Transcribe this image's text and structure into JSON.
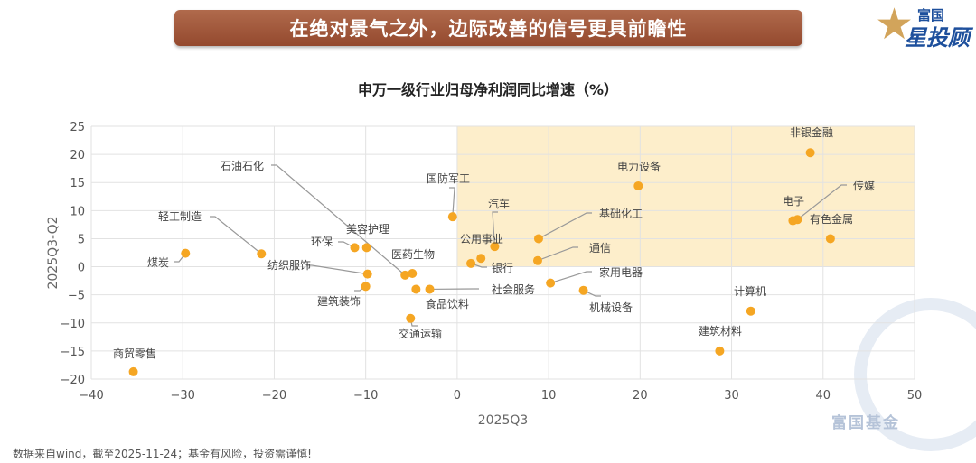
{
  "banner": "在绝对景气之外，边际改善的信号更具前瞻性",
  "logo": {
    "line1": "富国",
    "line2": "星投顾",
    "star": "★"
  },
  "watermark": "富国基金",
  "footer": "数据来自wind，截至2025-11-24；基金有风险，投资需谨慎!",
  "colors": {
    "point": "#f5a623",
    "highlight": "#fdeecb",
    "banner": "#a0573a",
    "grid": "#e2e2e2"
  },
  "chart_data": {
    "type": "scatter",
    "title": "申万一级行业归母净利润同比增速（%）",
    "xlabel": "2025Q3",
    "ylabel": "2025Q3-Q2",
    "xlim": [
      -40,
      50
    ],
    "ylim": [
      -20,
      25
    ],
    "xticks": [
      -40,
      -30,
      -20,
      -10,
      0,
      10,
      20,
      30,
      40,
      50
    ],
    "yticks": [
      25,
      20,
      15,
      10,
      5,
      0,
      -5,
      -10,
      -15,
      -20
    ],
    "grid": true,
    "highlight_region": {
      "x": [
        0,
        50
      ],
      "y": [
        0,
        25
      ]
    },
    "points": [
      {
        "name": "商贸零售",
        "x": -35.4,
        "y": -18.7
      },
      {
        "name": "煤炭",
        "x": -29.7,
        "y": 2.4
      },
      {
        "name": "轻工制造",
        "x": -21.4,
        "y": 2.3
      },
      {
        "name": "纺织服饰",
        "x": -9.8,
        "y": -1.3
      },
      {
        "name": "环保",
        "x": -11.2,
        "y": 3.4
      },
      {
        "name": "美容护理",
        "x": -9.9,
        "y": 3.4
      },
      {
        "name": "石油石化",
        "x": -5.7,
        "y": -1.5
      },
      {
        "name": "医药生物",
        "x": -4.9,
        "y": -1.2
      },
      {
        "name": "建筑装饰",
        "x": -10.0,
        "y": -3.5
      },
      {
        "name": "食品饮料",
        "x": -4.5,
        "y": -4.0
      },
      {
        "name": "社会服务",
        "x": -3.0,
        "y": -4.0
      },
      {
        "name": "交通运输",
        "x": -5.1,
        "y": -9.2
      },
      {
        "name": "国防军工",
        "x": -0.5,
        "y": 8.9
      },
      {
        "name": "汽车",
        "x": 4.1,
        "y": 3.6
      },
      {
        "name": "公用事业",
        "x": 2.6,
        "y": 1.5
      },
      {
        "name": "银行",
        "x": 1.5,
        "y": 0.6
      },
      {
        "name": "基础化工",
        "x": 8.9,
        "y": 5.0
      },
      {
        "name": "通信",
        "x": 8.8,
        "y": 1.1
      },
      {
        "name": "家用电器",
        "x": 10.2,
        "y": -2.9
      },
      {
        "name": "机械设备",
        "x": 13.8,
        "y": -4.2
      },
      {
        "name": "电力设备",
        "x": 19.8,
        "y": 14.4
      },
      {
        "name": "非银金融",
        "x": 38.6,
        "y": 20.3
      },
      {
        "name": "电子",
        "x": 36.7,
        "y": 8.2
      },
      {
        "name": "传媒",
        "x": 37.2,
        "y": 8.4
      },
      {
        "name": "有色金属",
        "x": 40.8,
        "y": 5.0
      },
      {
        "name": "计算机",
        "x": 32.1,
        "y": -7.9
      },
      {
        "name": "建筑材料",
        "x": 28.7,
        "y": -15.0
      }
    ]
  }
}
